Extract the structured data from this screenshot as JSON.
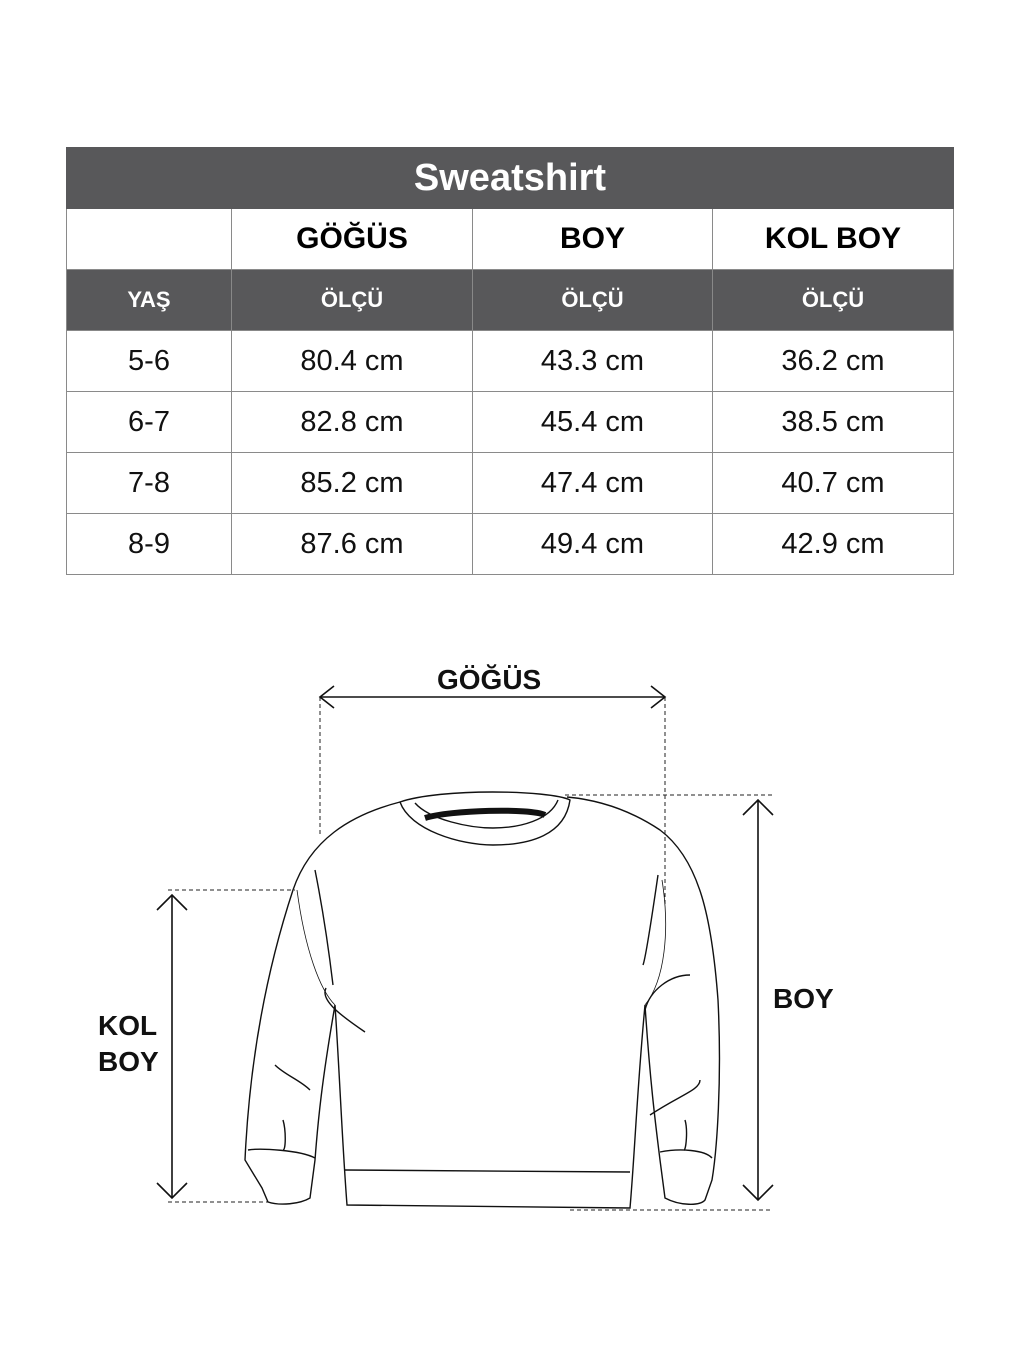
{
  "table": {
    "title": "Sweatshirt",
    "headers": [
      "",
      "GÖĞÜS",
      "BOY",
      "KOL BOY"
    ],
    "subheaders": [
      "YAŞ",
      "ÖLÇÜ",
      "ÖLÇÜ",
      "ÖLÇÜ"
    ],
    "rows": [
      [
        "5-6",
        "80.4 cm",
        "43.3 cm",
        "36.2 cm"
      ],
      [
        "6-7",
        "82.8 cm",
        "45.4 cm",
        "38.5 cm"
      ],
      [
        "7-8",
        "85.2 cm",
        "47.4 cm",
        "40.7 cm"
      ],
      [
        "8-9",
        "87.6 cm",
        "49.4 cm",
        "42.9 cm"
      ]
    ]
  },
  "diagram": {
    "chest_label": "GÖĞÜS",
    "length_label": "BOY",
    "sleeve_label_line1": "KOL",
    "sleeve_label_line2": "BOY"
  },
  "colors": {
    "header_bg": "#58585a"
  }
}
